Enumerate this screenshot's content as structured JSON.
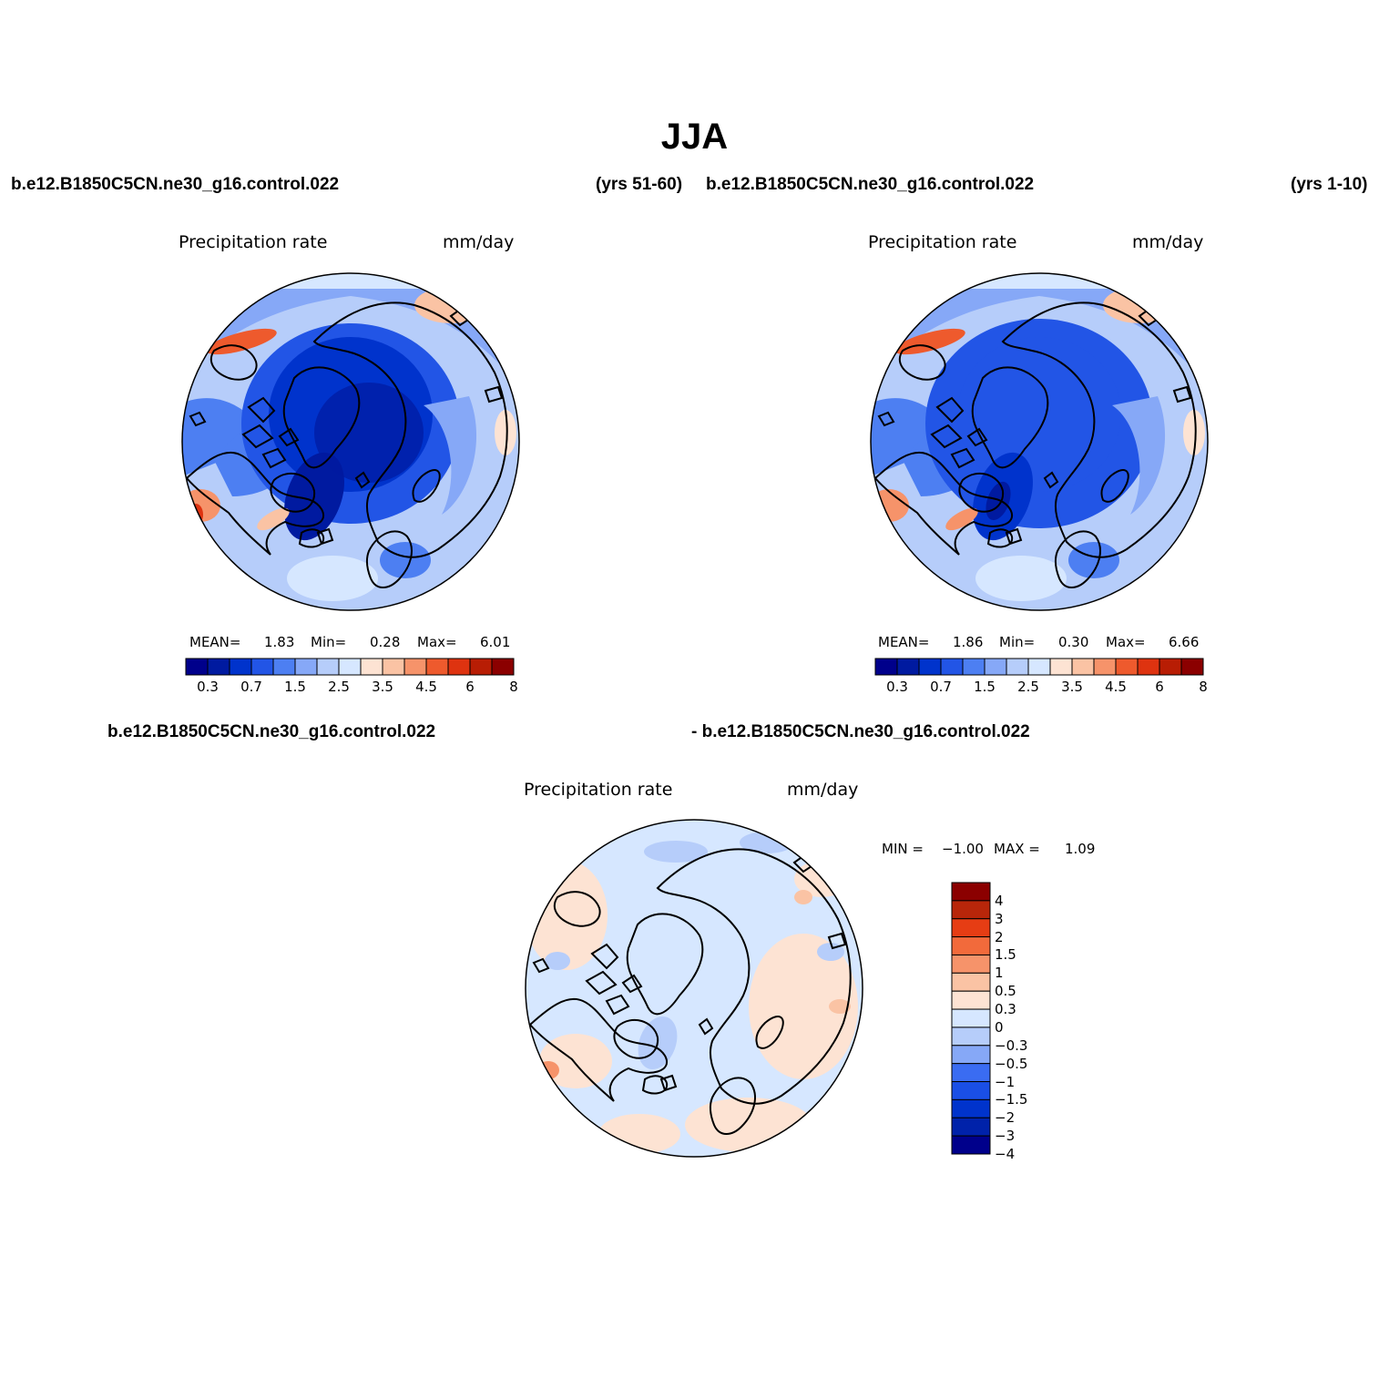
{
  "title": "JJA",
  "colors": {
    "scale": [
      "#00008b",
      "#001aa0",
      "#0033cc",
      "#2255e6",
      "#4d7ff2",
      "#86a8f7",
      "#b6cdfa",
      "#d6e7ff",
      "#fde3d3",
      "#fac3a4",
      "#f6936a",
      "#ee5a2d",
      "#de3310",
      "#b81d04",
      "#8b0000"
    ],
    "diff_scale": [
      "#00008b",
      "#0022aa",
      "#0033cc",
      "#1a4fe6",
      "#3a6cf2",
      "#86a8f7",
      "#b6cdfa",
      "#d6e7ff",
      "#fde3d3",
      "#fac3a4",
      "#f6936a",
      "#f26a3b",
      "#e63d14",
      "#b8260a",
      "#8b0000"
    ]
  },
  "panels": [
    {
      "case": "b.e12.B1850C5CN.ne30_g16.control.022",
      "years": "(yrs 51-60)",
      "variable": "Precipitation rate",
      "units": "mm/day",
      "mean_label": "MEAN=",
      "mean": "1.83",
      "min_label": "Min=",
      "min": "0.28",
      "max_label": "Max=",
      "max": "6.01",
      "ticks": [
        "0.3",
        "0.7",
        "1.5",
        "2.5",
        "3.5",
        "4.5",
        "6",
        "8"
      ]
    },
    {
      "case": "b.e12.B1850C5CN.ne30_g16.control.022",
      "years": "(yrs 1-10)",
      "variable": "Precipitation rate",
      "units": "mm/day",
      "mean_label": "MEAN=",
      "mean": "1.86",
      "min_label": "Min=",
      "min": "0.30",
      "max_label": "Max=",
      "max": "6.66",
      "ticks": [
        "0.3",
        "0.7",
        "1.5",
        "2.5",
        "3.5",
        "4.5",
        "6",
        "8"
      ]
    }
  ],
  "diff": {
    "case_a": "b.e12.B1850C5CN.ne30_g16.control.022",
    "case_b": "- b.e12.B1850C5CN.ne30_g16.control.022",
    "variable": "Precipitation rate",
    "units": "mm/day",
    "min_label": "MIN =",
    "min": "−1.00",
    "max_label": "MAX =",
    "max": "1.09",
    "ticks": [
      "4",
      "3",
      "2",
      "1.5",
      "1",
      "0.5",
      "0.3",
      "0",
      "−0.3",
      "−0.5",
      "−1",
      "−1.5",
      "−2",
      "−3",
      "−4"
    ]
  }
}
